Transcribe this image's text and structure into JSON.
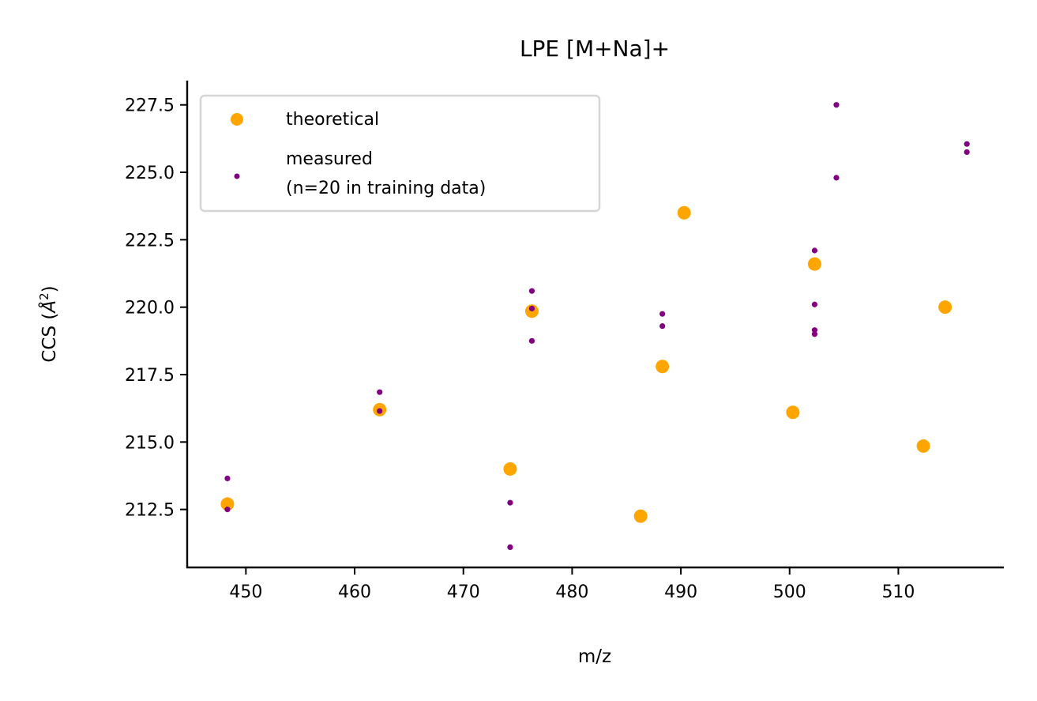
{
  "chart_data": {
    "type": "scatter",
    "title": "LPE [M+Na]+",
    "xlabel": "m/z",
    "ylabel": "CCS (Å²)",
    "ylabel_parts": {
      "prefix": "CCS (",
      "symbol": "Å",
      "superscript": "2",
      "suffix": ")"
    },
    "xlim": [
      444.6,
      519.7
    ],
    "ylim": [
      210.35,
      228.4
    ],
    "x_ticks": [
      450,
      460,
      470,
      480,
      490,
      500,
      510
    ],
    "x_tick_labels": [
      "450",
      "460",
      "470",
      "480",
      "490",
      "500",
      "510"
    ],
    "y_ticks": [
      212.5,
      215.0,
      217.5,
      220.0,
      222.5,
      225.0,
      227.5
    ],
    "y_tick_labels": [
      "212.5",
      "215.0",
      "217.5",
      "220.0",
      "222.5",
      "225.0",
      "227.5"
    ],
    "grid": false,
    "legend_position": "top-left",
    "series": [
      {
        "name": "theoretical",
        "color": "#ffa500",
        "marker": "large-dot",
        "points": [
          {
            "x": 448.3,
            "y": 212.7
          },
          {
            "x": 462.3,
            "y": 216.2
          },
          {
            "x": 474.3,
            "y": 214.0
          },
          {
            "x": 476.3,
            "y": 219.85
          },
          {
            "x": 486.3,
            "y": 212.25
          },
          {
            "x": 488.3,
            "y": 217.8
          },
          {
            "x": 490.3,
            "y": 223.5
          },
          {
            "x": 500.3,
            "y": 216.1
          },
          {
            "x": 502.3,
            "y": 221.6
          },
          {
            "x": 512.3,
            "y": 214.85
          },
          {
            "x": 514.3,
            "y": 220.0
          }
        ]
      },
      {
        "name": "measured",
        "name_line2": "(n=20 in training data)",
        "color": "#800080",
        "marker": "small-dot",
        "points": [
          {
            "x": 448.3,
            "y": 213.65
          },
          {
            "x": 448.3,
            "y": 212.5
          },
          {
            "x": 462.3,
            "y": 216.85
          },
          {
            "x": 462.3,
            "y": 216.15
          },
          {
            "x": 474.3,
            "y": 212.75
          },
          {
            "x": 474.3,
            "y": 211.1
          },
          {
            "x": 476.3,
            "y": 220.6
          },
          {
            "x": 476.3,
            "y": 219.95
          },
          {
            "x": 476.3,
            "y": 218.75
          },
          {
            "x": 488.3,
            "y": 219.75
          },
          {
            "x": 488.3,
            "y": 219.3
          },
          {
            "x": 502.3,
            "y": 222.1
          },
          {
            "x": 502.3,
            "y": 220.1
          },
          {
            "x": 502.3,
            "y": 219.15
          },
          {
            "x": 502.3,
            "y": 219.0
          },
          {
            "x": 504.3,
            "y": 227.5
          },
          {
            "x": 504.3,
            "y": 224.8
          },
          {
            "x": 516.3,
            "y": 226.05
          },
          {
            "x": 516.3,
            "y": 225.75
          }
        ]
      }
    ]
  }
}
